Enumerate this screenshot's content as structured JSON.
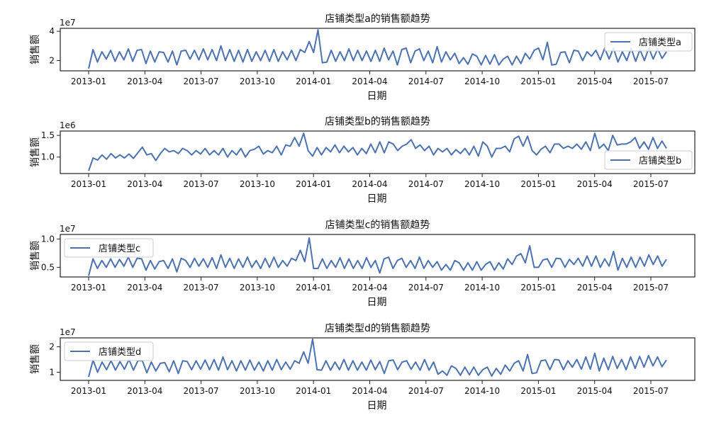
{
  "chart_data": [
    {
      "type": "line",
      "title": "店铺类型a的销售额趋势",
      "xlabel": "日期",
      "ylabel": "销售额",
      "y_offset_label": "1e7",
      "y_ticks": [
        2,
        4
      ],
      "y_tick_labels": [
        "2",
        "4"
      ],
      "ylim": [
        1.3,
        4.2
      ],
      "legend": "upper right",
      "x_tick_labels": [
        "2013-01",
        "2013-04",
        "2013-07",
        "2013-10",
        "2014-01",
        "2014-04",
        "2014-07",
        "2014-10",
        "2015-01",
        "2015-04",
        "2015-07"
      ],
      "series": [
        {
          "name": "店铺类型a",
          "color": "#4c72b0",
          "values": [
            1.45,
            2.75,
            1.9,
            2.6,
            2.1,
            2.7,
            1.95,
            2.6,
            2.05,
            2.8,
            1.95,
            2.7,
            2.75,
            1.8,
            2.65,
            1.9,
            2.6,
            2.55,
            1.9,
            2.65,
            1.7,
            2.65,
            2.7,
            2.1,
            2.7,
            2.05,
            2.8,
            2.05,
            2.75,
            2.0,
            3.0,
            2.0,
            2.75,
            1.95,
            2.7,
            1.9,
            2.75,
            1.95,
            2.6,
            2.0,
            2.7,
            1.95,
            2.75,
            1.95,
            2.6,
            2.05,
            2.7,
            2.0,
            2.75,
            2.55,
            3.3,
            2.55,
            4.1,
            1.85,
            1.9,
            2.7,
            1.95,
            2.6,
            2.0,
            2.8,
            2.0,
            2.7,
            2.0,
            2.65,
            1.95,
            2.7,
            1.95,
            2.85,
            2.05,
            2.65,
            1.7,
            2.75,
            2.85,
            1.85,
            2.65,
            2.8,
            2.0,
            2.65,
            1.85,
            2.95,
            1.9,
            2.6,
            2.05,
            2.5,
            1.8,
            2.2,
            1.75,
            2.45,
            2.3,
            1.7,
            2.35,
            1.75,
            2.4,
            1.7,
            2.1,
            2.3,
            1.7,
            2.3,
            1.8,
            2.5,
            2.1,
            2.7,
            2.85,
            2.05,
            3.25,
            1.7,
            1.75,
            2.55,
            2.6,
            1.85,
            2.7,
            2.65,
            2.0,
            2.6,
            2.3,
            2.7,
            2.05,
            2.85,
            2.1,
            2.85,
            1.9,
            2.6,
            2.0,
            2.85,
            1.95,
            2.75,
            2.0,
            2.85,
            2.1,
            2.8,
            2.15,
            2.6
          ]
        }
      ]
    },
    {
      "type": "line",
      "title": "店铺类型b的销售额趋势",
      "xlabel": "日期",
      "ylabel": "销售额",
      "y_offset_label": "1e6",
      "y_ticks": [
        1.0,
        1.5
      ],
      "y_tick_labels": [
        "1.0",
        "1.5"
      ],
      "ylim": [
        0.62,
        1.6
      ],
      "legend": "lower right",
      "x_tick_labels": [
        "2013-01",
        "2013-04",
        "2013-07",
        "2013-10",
        "2014-01",
        "2014-04",
        "2014-07",
        "2014-10",
        "2015-01",
        "2015-04",
        "2015-07"
      ],
      "series": [
        {
          "name": "店铺类型b",
          "color": "#4c72b0",
          "values": [
            0.68,
            0.98,
            0.93,
            1.05,
            0.95,
            1.08,
            0.98,
            1.05,
            0.98,
            1.07,
            0.97,
            1.1,
            1.23,
            1.05,
            1.08,
            0.92,
            1.08,
            1.2,
            1.12,
            1.15,
            1.08,
            1.2,
            1.15,
            1.05,
            1.15,
            1.07,
            1.2,
            1.05,
            1.15,
            1.05,
            1.2,
            1.0,
            1.15,
            1.05,
            1.2,
            1.0,
            1.15,
            1.18,
            1.25,
            1.07,
            1.15,
            1.1,
            1.25,
            1.05,
            1.28,
            1.25,
            1.45,
            1.25,
            1.55,
            1.15,
            1.02,
            1.22,
            1.05,
            1.22,
            1.12,
            1.28,
            1.1,
            1.25,
            1.12,
            1.22,
            1.05,
            1.2,
            1.08,
            1.3,
            1.1,
            1.35,
            1.1,
            1.35,
            1.3,
            1.15,
            1.25,
            1.3,
            1.4,
            1.2,
            1.28,
            1.15,
            1.25,
            1.05,
            1.2,
            1.12,
            1.2,
            1.05,
            1.17,
            1.08,
            1.2,
            1.05,
            1.25,
            1.02,
            1.35,
            1.25,
            1.0,
            1.2,
            1.2,
            1.25,
            1.12,
            1.42,
            1.48,
            1.25,
            1.48,
            1.15,
            1.05,
            1.18,
            1.25,
            1.1,
            1.3,
            1.3,
            1.2,
            1.25,
            1.2,
            1.3,
            1.18,
            1.35,
            1.15,
            1.55,
            1.2,
            1.3,
            1.15,
            1.5,
            1.28,
            1.3,
            1.3,
            1.35,
            1.45,
            1.2,
            1.35,
            1.18,
            1.45,
            1.2,
            1.37,
            1.2
          ]
        }
      ]
    },
    {
      "type": "line",
      "title": "店铺类型c的销售额趋势",
      "xlabel": "日期",
      "ylabel": "销售额",
      "y_offset_label": "1e7",
      "y_ticks": [
        0.5,
        1.0
      ],
      "y_tick_labels": [
        "0.5",
        "1.0"
      ],
      "ylim": [
        0.33,
        1.08
      ],
      "legend": "upper left",
      "x_tick_labels": [
        "2013-01",
        "2013-04",
        "2013-07",
        "2013-10",
        "2014-01",
        "2014-04",
        "2014-07",
        "2014-10",
        "2015-01",
        "2015-04",
        "2015-07"
      ],
      "series": [
        {
          "name": "店铺类型c",
          "color": "#4c72b0",
          "values": [
            0.35,
            0.65,
            0.48,
            0.62,
            0.5,
            0.65,
            0.5,
            0.64,
            0.52,
            0.68,
            0.5,
            0.66,
            0.65,
            0.45,
            0.62,
            0.47,
            0.6,
            0.62,
            0.48,
            0.65,
            0.42,
            0.66,
            0.62,
            0.5,
            0.66,
            0.52,
            0.65,
            0.5,
            0.67,
            0.48,
            0.72,
            0.5,
            0.66,
            0.48,
            0.65,
            0.5,
            0.68,
            0.5,
            0.62,
            0.48,
            0.66,
            0.5,
            0.68,
            0.5,
            0.62,
            0.52,
            0.66,
            0.62,
            0.8,
            0.6,
            1.02,
            0.48,
            0.48,
            0.65,
            0.48,
            0.62,
            0.5,
            0.67,
            0.48,
            0.65,
            0.48,
            0.62,
            0.48,
            0.67,
            0.5,
            0.62,
            0.4,
            0.65,
            0.68,
            0.48,
            0.62,
            0.66,
            0.5,
            0.62,
            0.48,
            0.68,
            0.48,
            0.62,
            0.5,
            0.6,
            0.45,
            0.55,
            0.45,
            0.62,
            0.58,
            0.45,
            0.58,
            0.45,
            0.6,
            0.45,
            0.55,
            0.6,
            0.45,
            0.58,
            0.47,
            0.65,
            0.55,
            0.7,
            0.74,
            0.58,
            0.88,
            0.5,
            0.5,
            0.63,
            0.65,
            0.5,
            0.66,
            0.65,
            0.5,
            0.64,
            0.55,
            0.66,
            0.52,
            0.7,
            0.52,
            0.7,
            0.5,
            0.65,
            0.52,
            0.78,
            0.45,
            0.66,
            0.5,
            0.68,
            0.5,
            0.68,
            0.52,
            0.72,
            0.55,
            0.7,
            0.52,
            0.64
          ]
        }
      ]
    },
    {
      "type": "line",
      "title": "店铺类型d的销售额趋势",
      "xlabel": "日期",
      "ylabel": "销售额",
      "y_offset_label": "1e7",
      "y_ticks": [
        1,
        2
      ],
      "y_tick_labels": [
        "1",
        "2"
      ],
      "ylim": [
        0.68,
        2.35
      ],
      "legend": "upper left",
      "x_tick_labels": [
        "2013-01",
        "2013-04",
        "2013-07",
        "2013-10",
        "2014-01",
        "2014-04",
        "2014-07",
        "2014-10",
        "2015-01",
        "2015-04",
        "2015-07"
      ],
      "series": [
        {
          "name": "店铺类型d",
          "color": "#4c72b0",
          "values": [
            0.82,
            1.48,
            1.0,
            1.4,
            1.1,
            1.45,
            1.08,
            1.42,
            1.12,
            1.5,
            1.08,
            1.45,
            1.45,
            0.98,
            1.4,
            1.05,
            1.35,
            1.38,
            1.02,
            1.45,
            0.95,
            1.45,
            1.42,
            1.1,
            1.45,
            1.12,
            1.48,
            1.1,
            1.5,
            1.08,
            1.6,
            1.1,
            1.45,
            1.05,
            1.45,
            1.08,
            1.48,
            1.08,
            1.4,
            1.05,
            1.45,
            1.08,
            1.5,
            1.1,
            1.4,
            1.12,
            1.45,
            1.35,
            1.8,
            1.35,
            2.3,
            1.1,
            1.08,
            1.45,
            1.08,
            1.4,
            1.1,
            1.5,
            1.08,
            1.45,
            1.08,
            1.4,
            1.08,
            1.48,
            1.1,
            1.42,
            0.95,
            1.45,
            1.48,
            1.1,
            1.4,
            1.45,
            1.12,
            1.4,
            1.08,
            1.5,
            1.08,
            1.4,
            0.92,
            1.05,
            0.88,
            1.25,
            1.15,
            0.88,
            1.2,
            0.9,
            1.2,
            0.88,
            1.1,
            1.2,
            0.85,
            1.15,
            0.92,
            1.28,
            1.05,
            1.35,
            1.45,
            1.05,
            1.7,
            0.95,
            0.98,
            1.45,
            1.48,
            1.1,
            1.5,
            1.48,
            1.1,
            1.45,
            1.2,
            1.5,
            1.12,
            1.6,
            1.12,
            1.75,
            1.05,
            1.55,
            1.1,
            1.62,
            1.15,
            1.5,
            1.1,
            1.6,
            1.15,
            1.62,
            1.2,
            1.65,
            1.25,
            1.6,
            1.22,
            1.48
          ]
        }
      ]
    }
  ]
}
